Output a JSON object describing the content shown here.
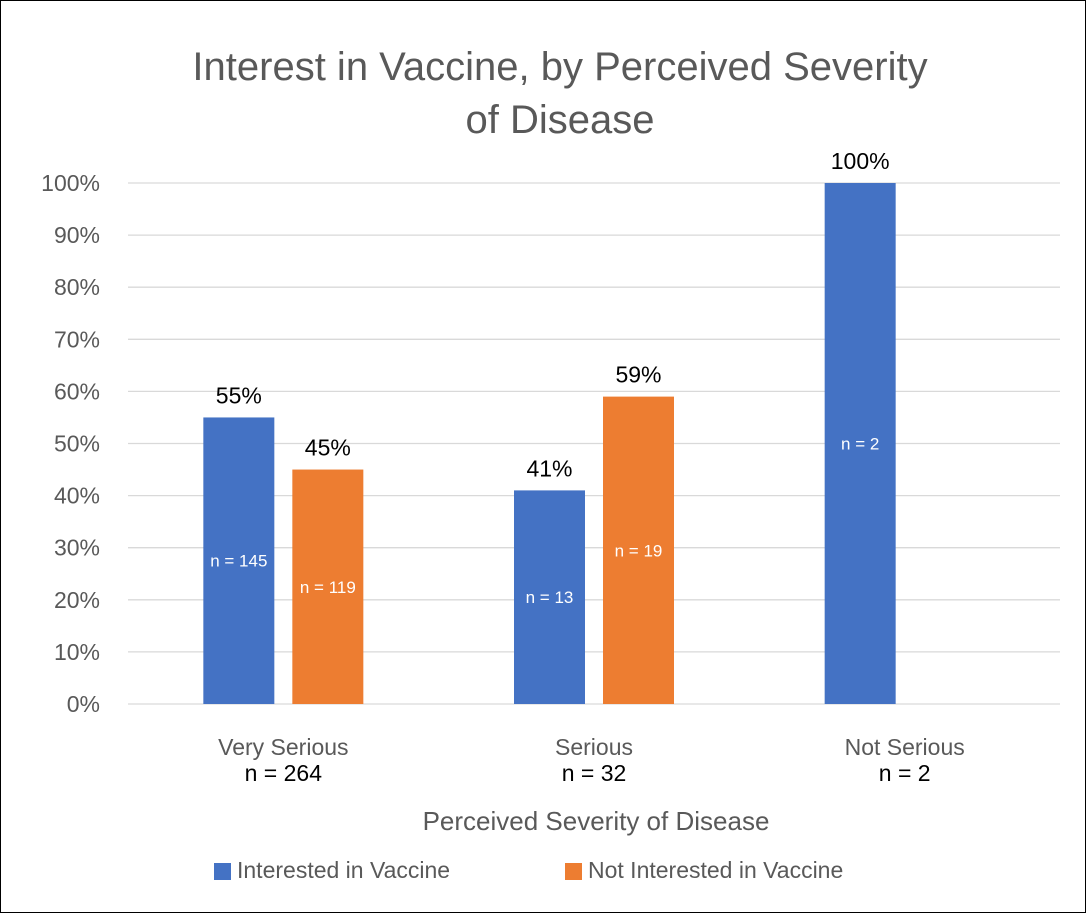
{
  "chart_data": {
    "type": "bar",
    "title_lines": [
      "Interest in Vaccine, by Perceived Severity",
      "of Disease"
    ],
    "xlabel": "Perceived Severity of Disease",
    "ylabel": "",
    "ylim": [
      0,
      100
    ],
    "yticks": [
      0,
      10,
      20,
      30,
      40,
      50,
      60,
      70,
      80,
      90,
      100
    ],
    "ytick_suffix": "%",
    "grid": true,
    "legend_position": "bottom",
    "categories": [
      {
        "label": "Very Serious",
        "n_label": "n = 264"
      },
      {
        "label": "Serious",
        "n_label": "n = 32"
      },
      {
        "label": "Not Serious",
        "n_label": "n = 2"
      }
    ],
    "series": [
      {
        "name": "Interested in Vaccine",
        "color": "#4472C4",
        "values": [
          55,
          41,
          100
        ],
        "value_labels": [
          "55%",
          "41%",
          "100%"
        ],
        "n_labels": [
          "n = 145",
          "n = 13",
          "n = 2"
        ]
      },
      {
        "name": "Not Interested in Vaccine",
        "color": "#ED7D31",
        "values": [
          45,
          59,
          null
        ],
        "value_labels": [
          "45%",
          "59%",
          ""
        ],
        "n_labels": [
          "n = 119",
          "n = 19",
          ""
        ]
      }
    ]
  }
}
